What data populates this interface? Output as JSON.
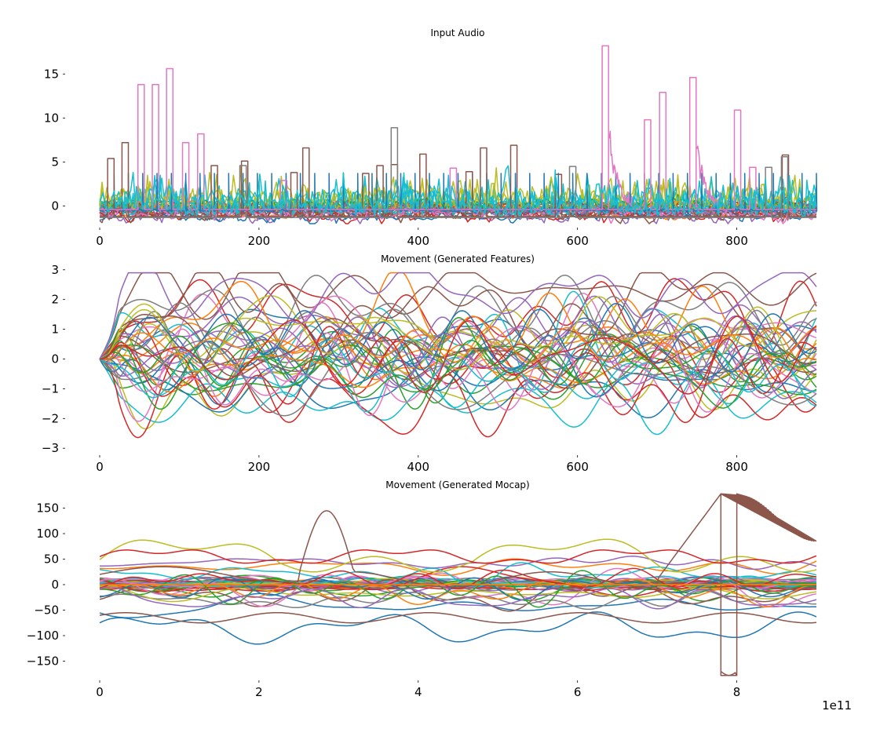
{
  "figure": {
    "background": "#ffffff",
    "palette": [
      "#1f77b4",
      "#ff7f0e",
      "#2ca02c",
      "#d62728",
      "#9467bd",
      "#8c564b",
      "#e377c2",
      "#7f7f7f",
      "#bcbd22",
      "#17becf"
    ]
  },
  "chart_data": [
    {
      "type": "line",
      "title": "Input Audio",
      "xlabel": "",
      "ylabel": "",
      "xlim": [
        0,
        900
      ],
      "ylim": [
        -2,
        18.5
      ],
      "xticks": [
        0,
        200,
        400,
        600,
        800
      ],
      "xtick_labels": [
        "0",
        "200",
        "400",
        "600",
        "800"
      ],
      "yticks": [
        0,
        5,
        10,
        15
      ],
      "ytick_labels": [
        "0",
        "5",
        "10",
        "15"
      ],
      "grid": false,
      "legend": "none",
      "series_count": 30,
      "seed": 11,
      "style": "audio",
      "pink_pulses": [
        {
          "x": [
            48,
            56
          ],
          "y": 13.8
        },
        {
          "x": [
            66,
            74
          ],
          "y": 13.8
        },
        {
          "x": [
            84,
            92
          ],
          "y": 15.6
        },
        {
          "x": [
            104,
            112
          ],
          "y": 7.2
        },
        {
          "x": [
            123,
            131
          ],
          "y": 8.2
        },
        {
          "x": [
            227,
            235
          ],
          "y": 2.9
        },
        {
          "x": [
            440,
            448
          ],
          "y": 4.3
        },
        {
          "x": [
            631,
            639
          ],
          "y": 18.2
        },
        {
          "x": [
            684,
            692
          ],
          "y": 9.8
        },
        {
          "x": [
            703,
            711
          ],
          "y": 12.9
        },
        {
          "x": [
            741,
            749
          ],
          "y": 14.6
        },
        {
          "x": [
            797,
            805
          ],
          "y": 10.9
        },
        {
          "x": [
            816,
            824
          ],
          "y": 4.4
        }
      ],
      "brown_pulses": [
        {
          "x": [
            10,
            18
          ],
          "y": 5.4
        },
        {
          "x": [
            28,
            36
          ],
          "y": 7.2
        },
        {
          "x": [
            140,
            148
          ],
          "y": 4.6
        },
        {
          "x": [
            178,
            186
          ],
          "y": 5.1
        },
        {
          "x": [
            240,
            248
          ],
          "y": 3.8
        },
        {
          "x": [
            255,
            263
          ],
          "y": 6.6
        },
        {
          "x": [
            330,
            338
          ],
          "y": 3.7
        },
        {
          "x": [
            348,
            356
          ],
          "y": 4.6
        },
        {
          "x": [
            366,
            374
          ],
          "y": 4.7
        },
        {
          "x": [
            402,
            410
          ],
          "y": 5.9
        },
        {
          "x": [
            460,
            468
          ],
          "y": 3.9
        },
        {
          "x": [
            478,
            486
          ],
          "y": 6.6
        },
        {
          "x": [
            516,
            524
          ],
          "y": 6.9
        },
        {
          "x": [
            572,
            580
          ],
          "y": 3.6
        },
        {
          "x": [
            857,
            865
          ],
          "y": 5.8
        }
      ],
      "gray_pulses": [
        {
          "x": [
            366,
            374
          ],
          "y": 8.9
        },
        {
          "x": [
            590,
            598
          ],
          "y": 4.5
        },
        {
          "x": [
            836,
            844
          ],
          "y": 4.4
        },
        {
          "x": [
            856,
            864
          ],
          "y": 5.6
        },
        {
          "x": [
            176,
            184
          ],
          "y": 4.6
        }
      ]
    },
    {
      "type": "line",
      "title": "Movement (Generated Features)",
      "xlabel": "",
      "ylabel": "",
      "xlim": [
        0,
        900
      ],
      "ylim": [
        -3.1,
        3.1
      ],
      "xticks": [
        0,
        200,
        400,
        600,
        800
      ],
      "xtick_labels": [
        "0",
        "200",
        "400",
        "600",
        "800"
      ],
      "yticks": [
        -3,
        -2,
        -1,
        0,
        1,
        2,
        3
      ],
      "ytick_labels": [
        "−3",
        "−2",
        "−1",
        "0",
        "1",
        "2",
        "3"
      ],
      "grid": false,
      "legend": "none",
      "series_count": 45,
      "seed": 23,
      "style": "features",
      "start_value": 0,
      "observed_max": 2.9,
      "observed_min": -2.95
    },
    {
      "type": "line",
      "title": "Movement (Generated Mocap)",
      "xlabel": "",
      "ylabel": "",
      "xlim": [
        0,
        9.0
      ],
      "x_offset_label": "1e11",
      "ylim": [
        -180,
        180
      ],
      "xticks": [
        0,
        2,
        4,
        6,
        8
      ],
      "xtick_labels": [
        "0",
        "2",
        "4",
        "6",
        "8"
      ],
      "yticks": [
        -150,
        -100,
        -50,
        0,
        50,
        100,
        150
      ],
      "ytick_labels": [
        "−150",
        "−100",
        "−50",
        "0",
        "50",
        "100",
        "150"
      ],
      "grid": false,
      "legend": "none",
      "series_count": 55,
      "seed": 37,
      "style": "mocap",
      "notable_series": [
        {
          "color": "#8c564b",
          "description": "wraps from +178 to -178 between x=7.8 and 8.0",
          "max": 178,
          "min": -178
        },
        {
          "color": "#1f77b4",
          "description": "lowest trace around -70 to -125",
          "min": -125
        },
        {
          "color": "#bcbd22",
          "description": "upper trace reaching ~120",
          "max": 120
        },
        {
          "color": "#d62728",
          "description": "upper trace around 50-80",
          "max": 80
        }
      ]
    }
  ]
}
